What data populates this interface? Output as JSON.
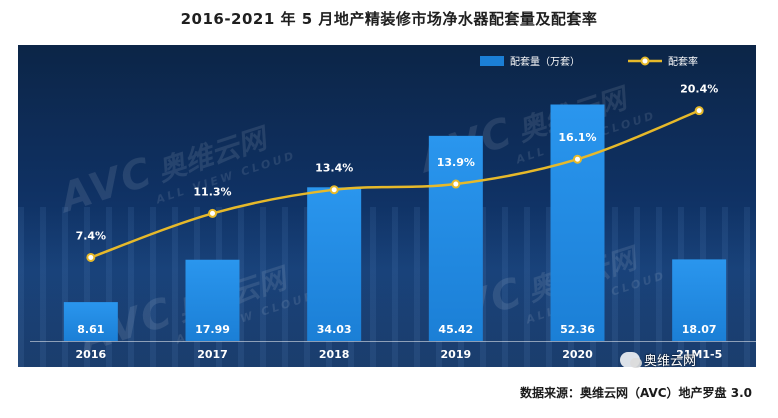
{
  "chart_data": {
    "type": "bar+line",
    "title": "2016-2021 年 5 月地产精装修市场净水器配套量及配套率",
    "categories": [
      "2016",
      "2017",
      "2018",
      "2019",
      "2020",
      "21M1-5"
    ],
    "series": [
      {
        "name": "配套量（万套）",
        "type": "bar",
        "values": [
          8.61,
          17.99,
          34.03,
          45.42,
          52.36,
          18.07
        ],
        "labels": [
          "8.61",
          "17.99",
          "34.03",
          "45.42",
          "52.36",
          "18.07"
        ]
      },
      {
        "name": "配套率",
        "type": "line",
        "values": [
          7.4,
          11.3,
          13.4,
          13.9,
          16.1,
          20.4
        ],
        "labels": [
          "7.4%",
          "11.3%",
          "13.4%",
          "13.9%",
          "16.1%",
          "20.4%"
        ]
      }
    ],
    "bar_ylim": [
      0,
      60
    ],
    "line_ylim": [
      0,
      24
    ]
  },
  "colors": {
    "bar": "#1b7fd6",
    "bar_top": "#2a96ee",
    "line": "#e6b92a",
    "text": "#ffffff"
  },
  "watermark": {
    "brand": "AVC",
    "cn": "奥维云网",
    "en": "ALL VIEW CLOUD"
  },
  "source_text": "数据来源：奥维云网（AVC）地产罗盘 3.0",
  "wechat_label": "奥维云网"
}
